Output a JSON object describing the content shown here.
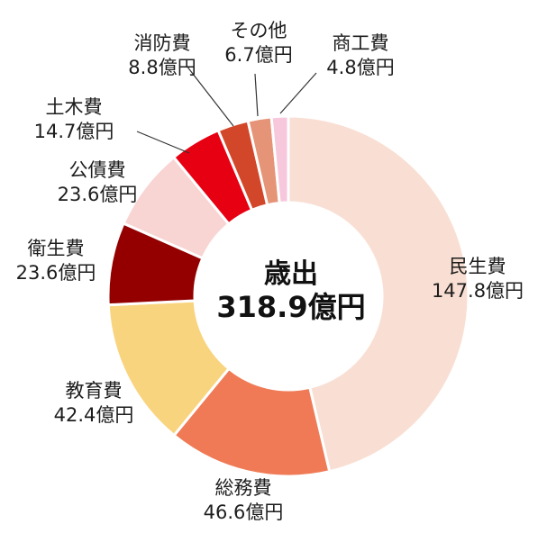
{
  "chart_data": {
    "type": "pie",
    "center_label": "歳出",
    "center_value": "318.9億円",
    "unit": "億円",
    "slices": [
      {
        "name": "民生費",
        "value": 147.8,
        "value_label": "147.8億円",
        "color": "#F9DFD3"
      },
      {
        "name": "総務費",
        "value": 46.6,
        "value_label": "46.6億円",
        "color": "#EF7A55"
      },
      {
        "name": "教育費",
        "value": 42.4,
        "value_label": "42.4億円",
        "color": "#F9D47E"
      },
      {
        "name": "衛生費",
        "value": 23.6,
        "value_label": "23.6億円",
        "color": "#940000"
      },
      {
        "name": "公債費",
        "value": 23.6,
        "value_label": "23.6億円",
        "color": "#F8D4D2"
      },
      {
        "name": "土木費",
        "value": 14.7,
        "value_label": "14.7億円",
        "color": "#E60012"
      },
      {
        "name": "消防費",
        "value": 8.8,
        "value_label": "8.8億円",
        "color": "#D24629"
      },
      {
        "name": "その他",
        "value": 6.7,
        "value_label": "6.7億円",
        "color": "#E69477"
      },
      {
        "name": "商工費",
        "value": 4.8,
        "value_label": "4.8億円",
        "color": "#F7C7DC"
      }
    ]
  }
}
